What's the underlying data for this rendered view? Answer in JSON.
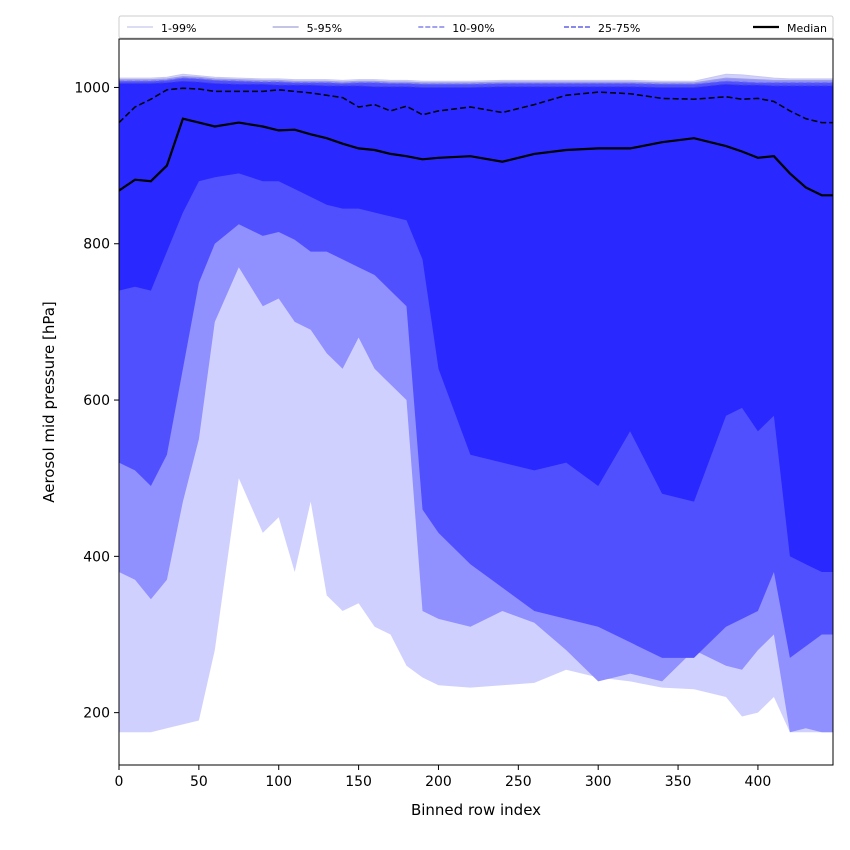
{
  "chart_data": {
    "type": "area",
    "xlabel": "Binned row index",
    "ylabel": "Aerosol mid pressure [hPa]",
    "xlim": [
      0,
      447
    ],
    "ylim": [
      133,
      1062
    ],
    "x_ticks": [
      0,
      50,
      100,
      150,
      200,
      250,
      300,
      350,
      400
    ],
    "y_ticks": [
      200,
      400,
      600,
      800,
      1000
    ],
    "grid": false,
    "legend_position": "top",
    "x": [
      0,
      10,
      20,
      30,
      40,
      50,
      60,
      75,
      90,
      100,
      110,
      120,
      130,
      140,
      150,
      160,
      170,
      180,
      190,
      200,
      220,
      240,
      260,
      280,
      300,
      320,
      340,
      360,
      380,
      390,
      400,
      410,
      420,
      430,
      440,
      447
    ],
    "bands": [
      {
        "name": "1-99%",
        "fill": "#d0d0ff",
        "line_color": "#c8c8ee",
        "line_style": "solid",
        "low": [
          175,
          175,
          175,
          180,
          185,
          190,
          280,
          500,
          430,
          450,
          380,
          470,
          350,
          330,
          340,
          310,
          300,
          260,
          245,
          235,
          232,
          235,
          238,
          255,
          245,
          240,
          232,
          230,
          220,
          195,
          200,
          220,
          175,
          175,
          175,
          175
        ],
        "high": [
          1012,
          1012,
          1012,
          1013,
          1017,
          1015,
          1013,
          1012,
          1011,
          1011,
          1010,
          1010,
          1010,
          1009,
          1010,
          1010,
          1009,
          1009,
          1008,
          1008,
          1008,
          1009,
          1009,
          1009,
          1009,
          1009,
          1008,
          1008,
          1017,
          1016,
          1014,
          1012,
          1011,
          1011,
          1011,
          1011
        ]
      },
      {
        "name": "5-95%",
        "fill": "#9090ff",
        "line_color": "#a0a0d8",
        "line_style": "solid",
        "low": [
          380,
          370,
          345,
          370,
          470,
          550,
          700,
          770,
          720,
          730,
          700,
          690,
          660,
          640,
          680,
          640,
          620,
          600,
          330,
          320,
          310,
          330,
          315,
          280,
          240,
          250,
          240,
          280,
          260,
          255,
          280,
          300,
          175,
          180,
          175,
          175
        ],
        "high": [
          1010,
          1010,
          1010,
          1011,
          1014,
          1013,
          1011,
          1010,
          1009,
          1009,
          1008,
          1008,
          1008,
          1007,
          1008,
          1008,
          1007,
          1007,
          1006,
          1006,
          1006,
          1007,
          1007,
          1007,
          1007,
          1007,
          1006,
          1006,
          1012,
          1011,
          1010,
          1009,
          1009,
          1009,
          1009,
          1009
        ]
      },
      {
        "name": "10-90%",
        "fill": "#5050ff",
        "line_color": "#6a6ae8",
        "line_style": "dashed",
        "low": [
          520,
          510,
          490,
          530,
          640,
          750,
          800,
          825,
          810,
          815,
          805,
          790,
          790,
          780,
          770,
          760,
          740,
          720,
          460,
          430,
          390,
          360,
          330,
          320,
          310,
          290,
          270,
          270,
          310,
          320,
          330,
          380,
          270,
          285,
          300,
          300
        ],
        "high": [
          1008,
          1008,
          1008,
          1009,
          1012,
          1011,
          1009,
          1008,
          1007,
          1007,
          1006,
          1006,
          1006,
          1005,
          1006,
          1006,
          1005,
          1005,
          1004,
          1004,
          1004,
          1005,
          1005,
          1005,
          1005,
          1005,
          1004,
          1004,
          1008,
          1007,
          1006,
          1006,
          1006,
          1006,
          1006,
          1006
        ]
      },
      {
        "name": "25-75%",
        "fill": "#2828ff",
        "line_color": "#4040dd",
        "line_style": "dashed",
        "low": [
          740,
          745,
          740,
          790,
          840,
          880,
          885,
          890,
          880,
          880,
          870,
          860,
          850,
          845,
          845,
          840,
          835,
          830,
          780,
          640,
          530,
          520,
          510,
          520,
          490,
          560,
          480,
          470,
          580,
          590,
          560,
          580,
          400,
          390,
          380,
          380
        ],
        "high": [
          1005,
          1005,
          1005,
          1006,
          1008,
          1007,
          1005,
          1004,
          1004,
          1003,
          1003,
          1003,
          1002,
          1002,
          1002,
          1001,
          1001,
          1001,
          1000,
          1000,
          1000,
          1001,
          1001,
          1001,
          1001,
          1001,
          1000,
          1000,
          1004,
          1003,
          1003,
          1002,
          1002,
          1002,
          1002,
          1002
        ]
      }
    ],
    "inner_band": {
      "name": "",
      "fill": "#2828ff",
      "low": [
        860,
        870,
        880,
        900,
        940,
        950,
        950,
        955,
        945,
        945,
        945,
        940,
        935,
        930,
        925,
        920,
        915,
        910,
        905,
        910,
        910,
        908,
        915,
        920,
        925,
        920,
        925,
        930,
        920,
        910,
        905,
        900,
        860,
        840,
        820,
        820
      ],
      "high": [
        960,
        975,
        985,
        995,
        998,
        998,
        995,
        995,
        993,
        995,
        993,
        990,
        988,
        985,
        975,
        978,
        970,
        975,
        968,
        970,
        978,
        968,
        975,
        990,
        992,
        990,
        985,
        985,
        988,
        985,
        985,
        980,
        970,
        960,
        955,
        955
      ]
    },
    "series": [
      {
        "name": "Median",
        "color": "#000000",
        "values": [
          868,
          882,
          880,
          900,
          960,
          955,
          950,
          955,
          950,
          945,
          946,
          940,
          935,
          928,
          922,
          920,
          915,
          912,
          908,
          910,
          912,
          905,
          915,
          920,
          922,
          922,
          930,
          935,
          925,
          918,
          910,
          912,
          890,
          872,
          862,
          862
        ]
      },
      {
        "name": "",
        "color": "#000000",
        "values": [
          955,
          975,
          985,
          997,
          999,
          998,
          995,
          995,
          995,
          997,
          995,
          993,
          990,
          987,
          975,
          978,
          970,
          976,
          965,
          970,
          975,
          968,
          978,
          990,
          994,
          992,
          986,
          985,
          988,
          985,
          986,
          982,
          970,
          960,
          955,
          955
        ]
      }
    ],
    "legend": [
      {
        "label": "1-99%",
        "color": "#c8c8ee",
        "style": "solid"
      },
      {
        "label": "5-95%",
        "color": "#a0a0d8",
        "style": "solid"
      },
      {
        "label": "10-90%",
        "color": "#6a6ae8",
        "style": "dashed"
      },
      {
        "label": "25-75%",
        "color": "#4040dd",
        "style": "dashed"
      },
      {
        "label": "Median",
        "color": "#000000",
        "style": "solid"
      }
    ]
  }
}
